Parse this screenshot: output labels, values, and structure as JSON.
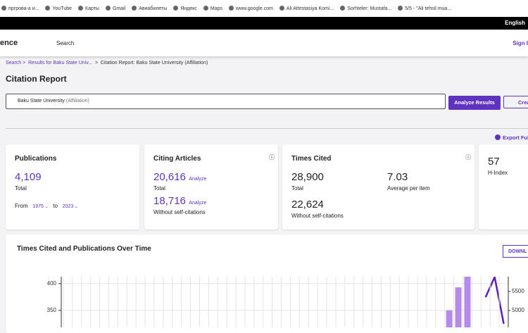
{
  "browser": {
    "bookmarks": [
      "пргрова-а и...",
      "YouTube",
      "Карты",
      "Gmail",
      "Авиабилеты",
      "Яндекс",
      "Maps",
      "www.google.com",
      "Ali Attestasiya Komi...",
      "Sorhteler: Mustafa...",
      "5/5 - \"Ali tehsil mua..."
    ]
  },
  "header": {
    "language": "English",
    "logo": "ence",
    "nav_search": "Search",
    "sign_in": "Sign I"
  },
  "breadcrumbs": [
    "Search",
    ">",
    "Results for Baku State Univ...",
    ">",
    "Citation Report: Baku State University (Affiliation)"
  ],
  "title": "Citation Report",
  "search_box": {
    "query": "Baku State University",
    "field": "(Affiliation)"
  },
  "buttons": {
    "analyze": "Analyze Results",
    "create": "Crea",
    "export": "Export Ful",
    "download": "DOWNL"
  },
  "cards": {
    "publications": {
      "title": "Publications",
      "value": "4,109",
      "label": "Total",
      "from": "From",
      "from_year": "1975",
      "to": "to",
      "to_year": "2023"
    },
    "citing": {
      "title": "Citing Articles",
      "value": "20,616",
      "analyze": "Analyze",
      "label": "Total",
      "value2": "18,716",
      "analyze2": "Analyze",
      "label2": "Without self-citations"
    },
    "times_cited": {
      "title": "Times Cited",
      "value": "28,900",
      "label": "Total",
      "avg": "7.03",
      "avg_label": "Average per item",
      "value2": "22,624",
      "label2": "Without self-citations"
    },
    "h_index": {
      "value": "57",
      "label": "H-Index"
    }
  },
  "chart_data": {
    "type": "bar",
    "title": "Times Cited and Publications Over Time",
    "categories": [
      null,
      null,
      null,
      null,
      null,
      null,
      null,
      null,
      null,
      null,
      null,
      null,
      null,
      null,
      null,
      null,
      null,
      null,
      null,
      null,
      null,
      null,
      null,
      null,
      null,
      null,
      null,
      null,
      null,
      null,
      null,
      null,
      null,
      null,
      null,
      null,
      null,
      null,
      null,
      null,
      null,
      null,
      null,
      null,
      null,
      null,
      null,
      null,
      null
    ],
    "series": [
      {
        "color": "#b48be8",
        "values": [
          null,
          null,
          null,
          null,
          null,
          null,
          null,
          null,
          null,
          null,
          null,
          null,
          null,
          null,
          null,
          null,
          null,
          null,
          null,
          null,
          null,
          null,
          null,
          null,
          null,
          null,
          null,
          null,
          null,
          null,
          null,
          null,
          null,
          null,
          null,
          null,
          null,
          null,
          null,
          null,
          null,
          null,
          350,
          393,
          413,
          null,
          null,
          null,
          null
        ]
      },
      {
        "color": "#5c1fb8",
        "axis": "y2",
        "values": [
          null,
          null,
          null,
          null,
          null,
          null,
          null,
          null,
          null,
          null,
          null,
          null,
          null,
          null,
          null,
          null,
          null,
          null,
          null,
          null,
          null,
          null,
          null,
          null,
          null,
          null,
          null,
          null,
          null,
          null,
          null,
          null,
          null,
          null,
          null,
          null,
          null,
          null,
          null,
          null,
          null,
          null,
          null,
          null,
          null,
          null,
          5350,
          5880,
          4650
        ]
      }
    ],
    "ylim": [
      318,
      413
    ],
    "yticks": [
      350,
      400
    ],
    "y2lim": [
      4556,
      5889
    ],
    "y2ticks": [
      5000,
      5500
    ],
    "grid": true
  }
}
